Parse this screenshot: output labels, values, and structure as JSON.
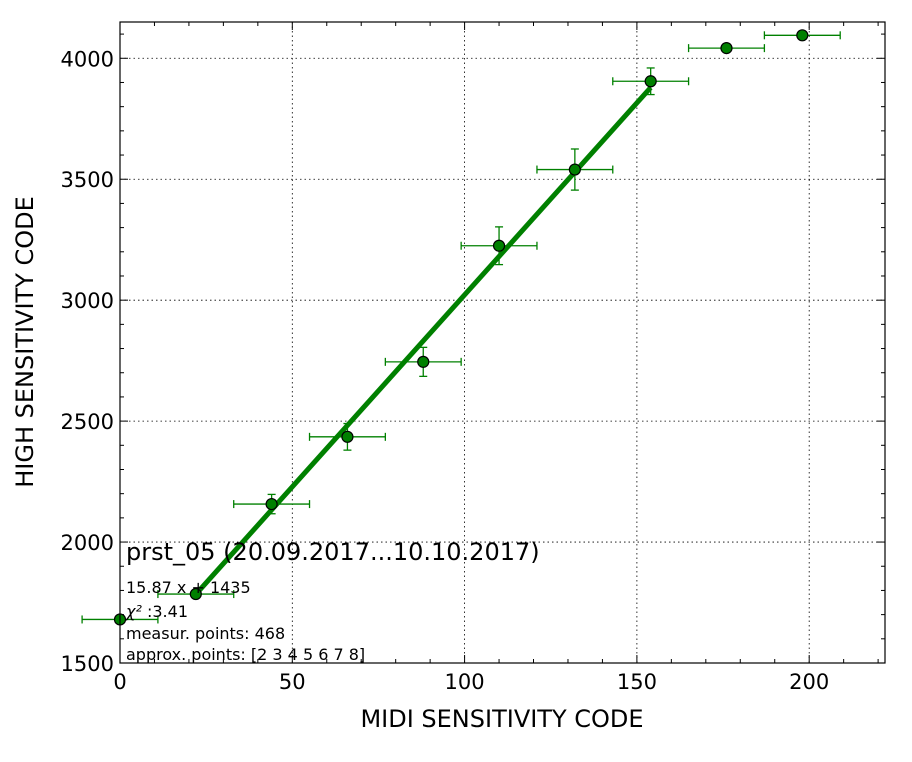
{
  "chart_data": {
    "type": "scatter",
    "xlabel": "MIDI SENSITIVITY CODE",
    "ylabel": "HIGH SENSITIVITY CODE",
    "xlim": [
      0,
      222
    ],
    "ylim": [
      1500,
      4150
    ],
    "xticks": [
      0,
      50,
      100,
      150,
      200
    ],
    "yticks": [
      1500,
      2000,
      2500,
      3000,
      3500,
      4000
    ],
    "grid": true,
    "colors": {
      "series": "#008000",
      "marker_edge": "#000000"
    },
    "series": [
      {
        "points": [
          {
            "x": 0,
            "y": 1680,
            "xerr": 11,
            "yerr": 0
          },
          {
            "x": 22,
            "y": 1785,
            "xerr": 11,
            "yerr": 10
          },
          {
            "x": 44,
            "y": 2157,
            "xerr": 11,
            "yerr": 40
          },
          {
            "x": 66,
            "y": 2435,
            "xerr": 11,
            "yerr": 55
          },
          {
            "x": 88,
            "y": 2745,
            "xerr": 11,
            "yerr": 60
          },
          {
            "x": 110,
            "y": 3225,
            "xerr": 11,
            "yerr": 78
          },
          {
            "x": 132,
            "y": 3540,
            "xerr": 11,
            "yerr": 85
          },
          {
            "x": 154,
            "y": 3905,
            "xerr": 11,
            "yerr": 55
          },
          {
            "x": 176,
            "y": 4042,
            "xerr": 11,
            "yerr": 15
          },
          {
            "x": 198,
            "y": 4095,
            "xerr": 11,
            "yerr": 10
          }
        ]
      }
    ],
    "fit_line": {
      "slope": 15.87,
      "intercept": 1435,
      "x_range": [
        22,
        154
      ]
    },
    "annotations": {
      "title": "prst_05 (20.09.2017...10.10.2017)",
      "formula": "15.87 x + 1435",
      "chi2_label": "χ²",
      "chi2_value": " :3.41",
      "points": "measur. points: 468",
      "approx": "approx. points: [2 3 4 5 6 7 8]"
    }
  }
}
